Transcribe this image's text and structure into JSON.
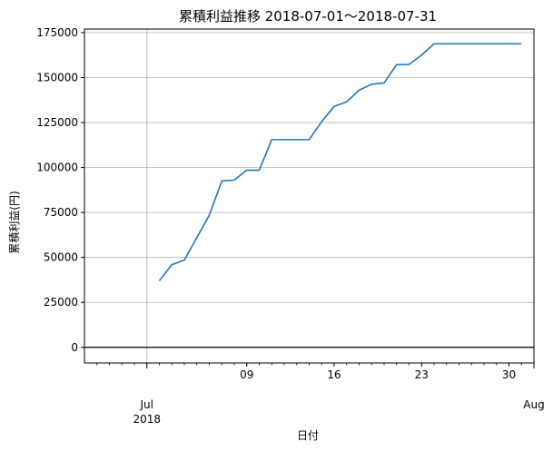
{
  "chart_data": {
    "type": "line",
    "title": "累積利益推移  2018-07-01〜2018-07-31",
    "xlabel": "日付",
    "ylabel": "累積利益(円)",
    "x_range": [
      "2018-06-26",
      "2018-08-01"
    ],
    "ylim": [
      -8700,
      177000
    ],
    "y_ticks": [
      0,
      25000,
      50000,
      75000,
      100000,
      125000,
      150000,
      175000
    ],
    "y_tick_labels": [
      "0",
      "25000",
      "50000",
      "75000",
      "100000",
      "125000",
      "150000",
      "175000"
    ],
    "x_major_ticks": [
      {
        "date": "2018-07-01",
        "label": "Jul",
        "sublabel": "2018"
      },
      {
        "date": "2018-08-01",
        "label": "Aug",
        "sublabel": ""
      }
    ],
    "x_minor_ticks": [
      {
        "date": "2018-07-09",
        "label": "09"
      },
      {
        "date": "2018-07-16",
        "label": "16"
      },
      {
        "date": "2018-07-23",
        "label": "23"
      },
      {
        "date": "2018-07-30",
        "label": "30"
      }
    ],
    "grid": true,
    "zero_line": true,
    "line_color": "#1f77b4",
    "series": [
      {
        "x": [
          "2018-07-02",
          "2018-07-03",
          "2018-07-04",
          "2018-07-05",
          "2018-07-06",
          "2018-07-07",
          "2018-07-08",
          "2018-07-09",
          "2018-07-10",
          "2018-07-11",
          "2018-07-12",
          "2018-07-13",
          "2018-07-14",
          "2018-07-15",
          "2018-07-16",
          "2018-07-17",
          "2018-07-18",
          "2018-07-19",
          "2018-07-20",
          "2018-07-21",
          "2018-07-22",
          "2018-07-23",
          "2018-07-24",
          "2018-07-25",
          "2018-07-26",
          "2018-07-27",
          "2018-07-28",
          "2018-07-29",
          "2018-07-30",
          "2018-07-31"
        ],
        "values": [
          37000,
          46000,
          48500,
          61000,
          73500,
          92500,
          93000,
          98500,
          98500,
          115500,
          115500,
          115500,
          115500,
          125500,
          134000,
          136500,
          143000,
          146300,
          147000,
          157200,
          157300,
          162500,
          168800,
          168800,
          168800,
          168800,
          168800,
          168800,
          168800,
          168800
        ]
      }
    ]
  }
}
